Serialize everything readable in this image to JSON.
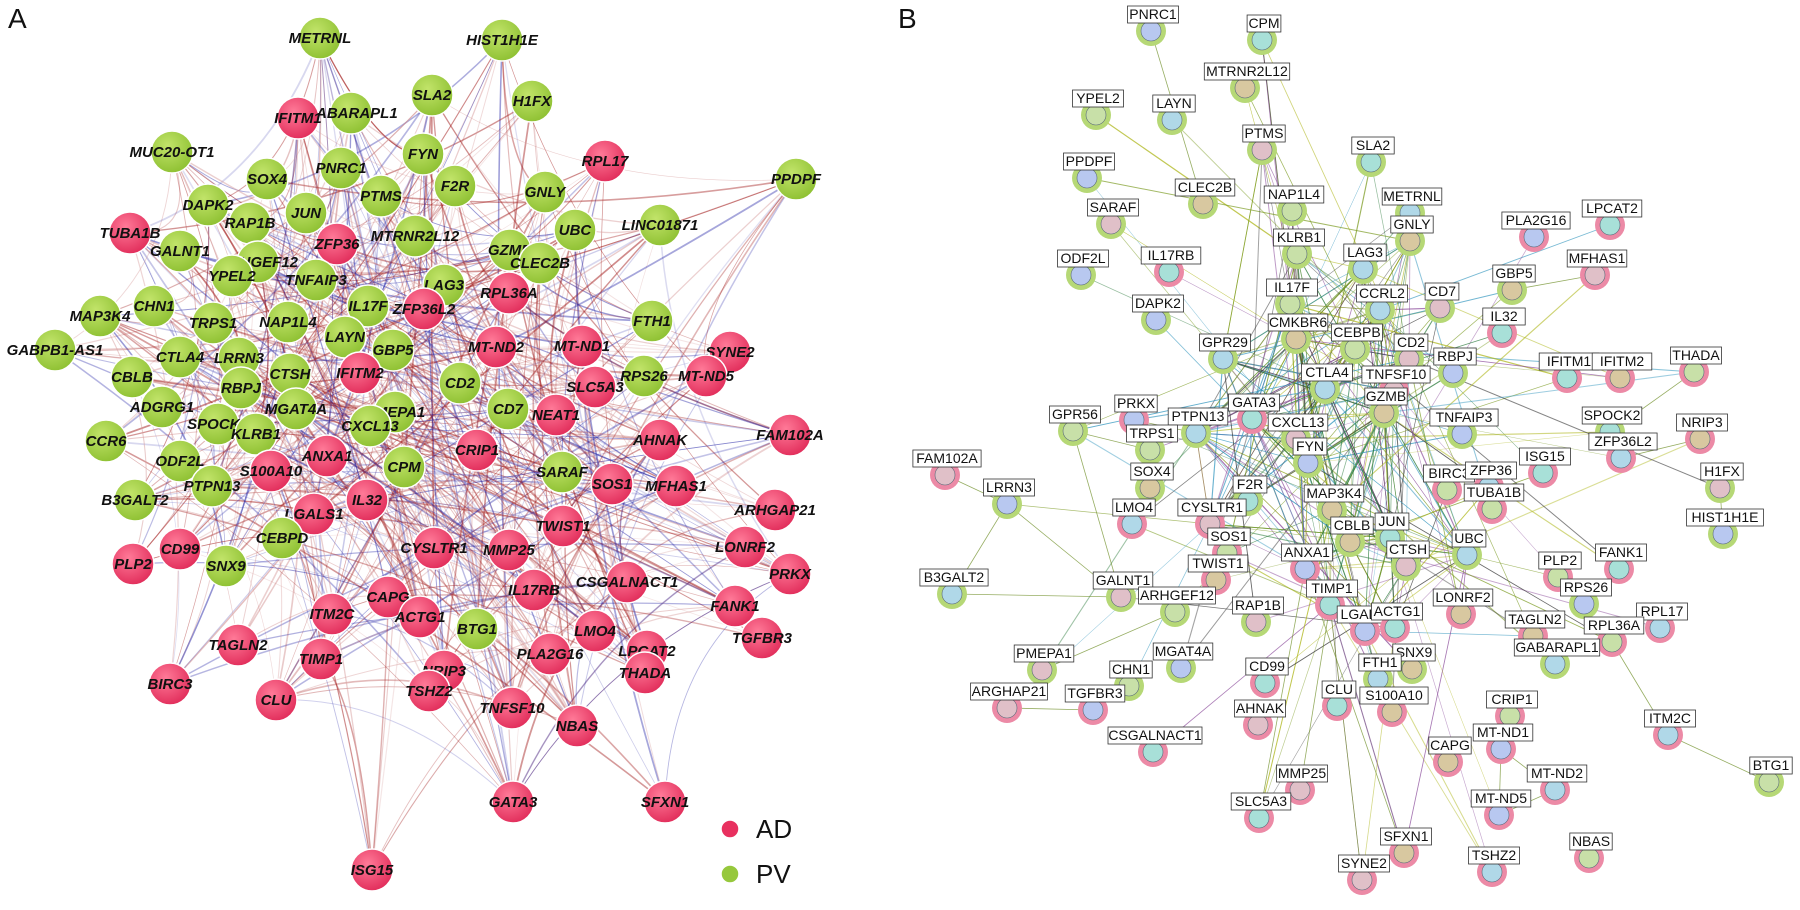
{
  "panels": [
    {
      "id": "A",
      "letter": "A"
    },
    {
      "id": "B",
      "letter": "B"
    }
  ],
  "colors": {
    "AD": "#e8305f",
    "PV": "#96c83c",
    "edge_red": "#a42020",
    "edge_blue": "#2828a8",
    "edge_light": "#d8a0a0"
  },
  "legend": [
    {
      "key": "AD",
      "label": "AD",
      "color": "#e8305f"
    },
    {
      "key": "PV",
      "label": "PV",
      "color": "#96c83c"
    }
  ],
  "panelA_nodes": [
    {
      "label": "METRNL",
      "group": "PV"
    },
    {
      "label": "HIST1H1E",
      "group": "PV"
    },
    {
      "label": "SLA2",
      "group": "PV"
    },
    {
      "label": "H1FX",
      "group": "PV"
    },
    {
      "label": "GABARAPL1",
      "group": "PV"
    },
    {
      "label": "IFITM1",
      "group": "AD"
    },
    {
      "label": "RPL17",
      "group": "AD"
    },
    {
      "label": "PPDPF",
      "group": "PV"
    },
    {
      "label": "MUC20-OT1",
      "group": "PV"
    },
    {
      "label": "SOX4",
      "group": "PV"
    },
    {
      "label": "PNRC1",
      "group": "PV"
    },
    {
      "label": "FYN",
      "group": "PV"
    },
    {
      "label": "F2R",
      "group": "PV"
    },
    {
      "label": "GNLY",
      "group": "PV"
    },
    {
      "label": "DAPK2",
      "group": "PV"
    },
    {
      "label": "PTMS",
      "group": "PV"
    },
    {
      "label": "JUN",
      "group": "PV"
    },
    {
      "label": "RAP1B",
      "group": "PV"
    },
    {
      "label": "UBC",
      "group": "PV"
    },
    {
      "label": "LINC01871",
      "group": "PV"
    },
    {
      "label": "TUBA1B",
      "group": "AD"
    },
    {
      "label": "GALNT1",
      "group": "PV"
    },
    {
      "label": "ZFP36",
      "group": "AD"
    },
    {
      "label": "MTRNR2L12",
      "group": "PV"
    },
    {
      "label": "GZMB",
      "group": "PV"
    },
    {
      "label": "CLEC2B",
      "group": "PV"
    },
    {
      "label": "ARHGEF12",
      "group": "PV"
    },
    {
      "label": "YPEL2",
      "group": "PV"
    },
    {
      "label": "TNFAIP3",
      "group": "PV"
    },
    {
      "label": "LAG3",
      "group": "PV"
    },
    {
      "label": "RPL36A",
      "group": "AD"
    },
    {
      "label": "CHN1",
      "group": "PV"
    },
    {
      "label": "MAP3K4",
      "group": "PV"
    },
    {
      "label": "IL17F",
      "group": "PV"
    },
    {
      "label": "ZFP36L2",
      "group": "AD"
    },
    {
      "label": "FTH1",
      "group": "PV"
    },
    {
      "label": "TRPS1",
      "group": "PV"
    },
    {
      "label": "NAP1L4",
      "group": "PV"
    },
    {
      "label": "GABPB1-AS1",
      "group": "PV"
    },
    {
      "label": "LAYN",
      "group": "PV"
    },
    {
      "label": "MT-ND2",
      "group": "AD"
    },
    {
      "label": "MT-ND1",
      "group": "AD"
    },
    {
      "label": "SYNE2",
      "group": "AD"
    },
    {
      "label": "CTLA4",
      "group": "PV"
    },
    {
      "label": "LRRN3",
      "group": "PV"
    },
    {
      "label": "GBP5",
      "group": "PV"
    },
    {
      "label": "CBLB",
      "group": "PV"
    },
    {
      "label": "CTSH",
      "group": "PV"
    },
    {
      "label": "IFITM2",
      "group": "AD"
    },
    {
      "label": "RPS26",
      "group": "PV"
    },
    {
      "label": "MT-ND5",
      "group": "AD"
    },
    {
      "label": "RBPJ",
      "group": "PV"
    },
    {
      "label": "CD2",
      "group": "PV"
    },
    {
      "label": "SLC5A3",
      "group": "AD"
    },
    {
      "label": "ADGRG1",
      "group": "PV"
    },
    {
      "label": "MGAT4A",
      "group": "PV"
    },
    {
      "label": "PMEPA1",
      "group": "PV"
    },
    {
      "label": "SPOCK2",
      "group": "PV"
    },
    {
      "label": "CD7",
      "group": "PV"
    },
    {
      "label": "NEAT1",
      "group": "AD"
    },
    {
      "label": "KLRB1",
      "group": "PV"
    },
    {
      "label": "CXCL13",
      "group": "PV"
    },
    {
      "label": "FAM102A",
      "group": "AD"
    },
    {
      "label": "CCR6",
      "group": "PV"
    },
    {
      "label": "AHNAK",
      "group": "AD"
    },
    {
      "label": "ODF2L",
      "group": "PV"
    },
    {
      "label": "ANXA1",
      "group": "AD"
    },
    {
      "label": "CRIP1",
      "group": "AD"
    },
    {
      "label": "S100A10",
      "group": "AD"
    },
    {
      "label": "CPM",
      "group": "PV"
    },
    {
      "label": "SARAF",
      "group": "PV"
    },
    {
      "label": "SOS1",
      "group": "AD"
    },
    {
      "label": "MFHAS1",
      "group": "AD"
    },
    {
      "label": "PTPN13",
      "group": "PV"
    },
    {
      "label": "B3GALT2",
      "group": "PV"
    },
    {
      "label": "ARHGAP21",
      "group": "AD"
    },
    {
      "label": "LGALS1",
      "group": "AD"
    },
    {
      "label": "IL32",
      "group": "AD"
    },
    {
      "label": "CEBPD",
      "group": "PV"
    },
    {
      "label": "TWIST1",
      "group": "AD"
    },
    {
      "label": "CD99",
      "group": "AD"
    },
    {
      "label": "CYSLTR1",
      "group": "AD"
    },
    {
      "label": "LONRF2",
      "group": "AD"
    },
    {
      "label": "MMP25",
      "group": "AD"
    },
    {
      "label": "PLP2",
      "group": "AD"
    },
    {
      "label": "SNX9",
      "group": "PV"
    },
    {
      "label": "PRKX",
      "group": "AD"
    },
    {
      "label": "CSGALNACT1",
      "group": "AD"
    },
    {
      "label": "IL17RB",
      "group": "AD"
    },
    {
      "label": "CAPG",
      "group": "AD"
    },
    {
      "label": "FANK1",
      "group": "AD"
    },
    {
      "label": "ITM2C",
      "group": "AD"
    },
    {
      "label": "ACTG1",
      "group": "AD"
    },
    {
      "label": "BTG1",
      "group": "PV"
    },
    {
      "label": "LMO4",
      "group": "AD"
    },
    {
      "label": "TAGLN2",
      "group": "AD"
    },
    {
      "label": "TGFBR3",
      "group": "AD"
    },
    {
      "label": "PLA2G16",
      "group": "AD"
    },
    {
      "label": "LPCAT2",
      "group": "AD"
    },
    {
      "label": "TIMP1",
      "group": "AD"
    },
    {
      "label": "NRIP3",
      "group": "AD"
    },
    {
      "label": "THADA",
      "group": "AD"
    },
    {
      "label": "BIRC3",
      "group": "AD"
    },
    {
      "label": "CLU",
      "group": "AD"
    },
    {
      "label": "TSHZ2",
      "group": "AD"
    },
    {
      "label": "TNFSF10",
      "group": "AD"
    },
    {
      "label": "NBAS",
      "group": "AD"
    },
    {
      "label": "GATA3",
      "group": "AD"
    },
    {
      "label": "SFXN1",
      "group": "AD"
    },
    {
      "label": "ISG15",
      "group": "AD"
    }
  ],
  "panelB_nodes": [
    {
      "label": "PNRC1",
      "group": "PV"
    },
    {
      "label": "CPM",
      "group": "PV"
    },
    {
      "label": "MTRNR2L12",
      "group": "PV"
    },
    {
      "label": "YPEL2",
      "group": "PV"
    },
    {
      "label": "LAYN",
      "group": "PV"
    },
    {
      "label": "PTMS",
      "group": "PV"
    },
    {
      "label": "PPDPF",
      "group": "PV"
    },
    {
      "label": "SLA2",
      "group": "PV"
    },
    {
      "label": "CLEC2B",
      "group": "PV"
    },
    {
      "label": "NAP1L4",
      "group": "PV"
    },
    {
      "label": "METRNL",
      "group": "PV"
    },
    {
      "label": "SARAF",
      "group": "PV"
    },
    {
      "label": "PLA2G16",
      "group": "AD"
    },
    {
      "label": "LPCAT2",
      "group": "AD"
    },
    {
      "label": "GNLY",
      "group": "PV"
    },
    {
      "label": "KLRB1",
      "group": "PV"
    },
    {
      "label": "LAG3",
      "group": "PV"
    },
    {
      "label": "MFHAS1",
      "group": "AD"
    },
    {
      "label": "ODF2L",
      "group": "PV"
    },
    {
      "label": "IL17RB",
      "group": "AD"
    },
    {
      "label": "GBP5",
      "group": "PV"
    },
    {
      "label": "IL17F",
      "group": "PV"
    },
    {
      "label": "CCRL2",
      "group": "PV"
    },
    {
      "label": "CD7",
      "group": "PV"
    },
    {
      "label": "DAPK2",
      "group": "PV"
    },
    {
      "label": "IL32",
      "group": "AD"
    },
    {
      "label": "CMKBR6",
      "group": "PV"
    },
    {
      "label": "CEBPB",
      "group": "PV"
    },
    {
      "label": "GPR29",
      "group": "PV"
    },
    {
      "label": "CD2",
      "group": "PV"
    },
    {
      "label": "RBPJ",
      "group": "PV"
    },
    {
      "label": "IFITM1",
      "group": "AD"
    },
    {
      "label": "IFITM2",
      "group": "AD"
    },
    {
      "label": "THADA",
      "group": "AD"
    },
    {
      "label": "CTLA4",
      "group": "PV"
    },
    {
      "label": "TNFSF10",
      "group": "AD"
    },
    {
      "label": "PRKX",
      "group": "AD"
    },
    {
      "label": "GATA3",
      "group": "AD"
    },
    {
      "label": "GZMB",
      "group": "PV"
    },
    {
      "label": "GPR56",
      "group": "PV"
    },
    {
      "label": "PTPN13",
      "group": "PV"
    },
    {
      "label": "CXCL13",
      "group": "PV"
    },
    {
      "label": "TNFAIP3",
      "group": "PV"
    },
    {
      "label": "SPOCK2",
      "group": "PV"
    },
    {
      "label": "NRIP3",
      "group": "AD"
    },
    {
      "label": "TRPS1",
      "group": "PV"
    },
    {
      "label": "ZFP36L2",
      "group": "AD"
    },
    {
      "label": "FAM102A",
      "group": "AD"
    },
    {
      "label": "FYN",
      "group": "PV"
    },
    {
      "label": "ISG15",
      "group": "AD"
    },
    {
      "label": "SOX4",
      "group": "PV"
    },
    {
      "label": "BIRC3",
      "group": "AD"
    },
    {
      "label": "ZFP36",
      "group": "AD"
    },
    {
      "label": "H1FX",
      "group": "PV"
    },
    {
      "label": "LRRN3",
      "group": "PV"
    },
    {
      "label": "F2R",
      "group": "PV"
    },
    {
      "label": "MAP3K4",
      "group": "PV"
    },
    {
      "label": "TUBA1B",
      "group": "AD"
    },
    {
      "label": "LMO4",
      "group": "AD"
    },
    {
      "label": "CYSLTR1",
      "group": "AD"
    },
    {
      "label": "HIST1H1E",
      "group": "PV"
    },
    {
      "label": "JUN",
      "group": "PV"
    },
    {
      "label": "CBLB",
      "group": "PV"
    },
    {
      "label": "SOS1",
      "group": "AD"
    },
    {
      "label": "UBC",
      "group": "PV"
    },
    {
      "label": "CTSH",
      "group": "PV"
    },
    {
      "label": "ANXA1",
      "group": "AD"
    },
    {
      "label": "FANK1",
      "group": "AD"
    },
    {
      "label": "TWIST1",
      "group": "AD"
    },
    {
      "label": "PLP2",
      "group": "AD"
    },
    {
      "label": "B3GALT2",
      "group": "PV"
    },
    {
      "label": "GALNT1",
      "group": "PV"
    },
    {
      "label": "RPS26",
      "group": "PV"
    },
    {
      "label": "TIMP1",
      "group": "AD"
    },
    {
      "label": "LONRF2",
      "group": "AD"
    },
    {
      "label": "ARHGEF12",
      "group": "PV"
    },
    {
      "label": "RPL17",
      "group": "AD"
    },
    {
      "label": "RAP1B",
      "group": "PV"
    },
    {
      "label": "LGALS1",
      "group": "AD"
    },
    {
      "label": "ACTG1",
      "group": "AD"
    },
    {
      "label": "TAGLN2",
      "group": "AD"
    },
    {
      "label": "RPL36A",
      "group": "AD"
    },
    {
      "label": "GABARAPL1",
      "group": "PV"
    },
    {
      "label": "PMEPA1",
      "group": "PV"
    },
    {
      "label": "MGAT4A",
      "group": "PV"
    },
    {
      "label": "CD99",
      "group": "AD"
    },
    {
      "label": "SNX9",
      "group": "PV"
    },
    {
      "label": "CHN1",
      "group": "PV"
    },
    {
      "label": "FTH1",
      "group": "PV"
    },
    {
      "label": "ARGHAP21",
      "group": "AD"
    },
    {
      "label": "TGFBR3",
      "group": "AD"
    },
    {
      "label": "CLU",
      "group": "AD"
    },
    {
      "label": "S100A10",
      "group": "AD"
    },
    {
      "label": "CRIP1",
      "group": "AD"
    },
    {
      "label": "ITM2C",
      "group": "AD"
    },
    {
      "label": "AHNAK",
      "group": "AD"
    },
    {
      "label": "MT-ND1",
      "group": "AD"
    },
    {
      "label": "CSGALNACT1",
      "group": "AD"
    },
    {
      "label": "CAPG",
      "group": "AD"
    },
    {
      "label": "BTG1",
      "group": "PV"
    },
    {
      "label": "MT-ND2",
      "group": "AD"
    },
    {
      "label": "MMP25",
      "group": "AD"
    },
    {
      "label": "MT-ND5",
      "group": "AD"
    },
    {
      "label": "SLC5A3",
      "group": "AD"
    },
    {
      "label": "SFXN1",
      "group": "AD"
    },
    {
      "label": "NBAS",
      "group": "AD"
    },
    {
      "label": "TSHZ2",
      "group": "AD"
    },
    {
      "label": "SYNE2",
      "group": "AD"
    }
  ]
}
